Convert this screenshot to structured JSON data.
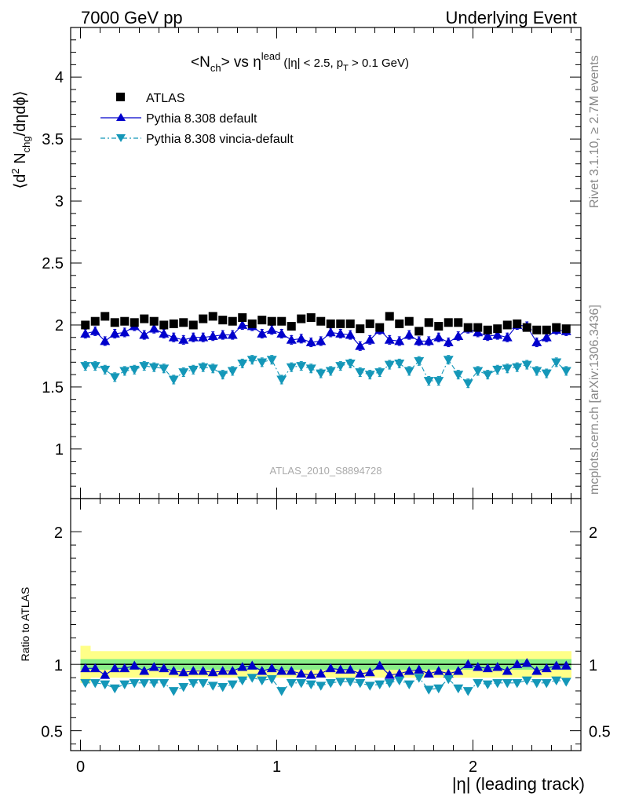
{
  "header": {
    "left": "7000 GeV pp",
    "right": "Underlying Event"
  },
  "side_labels": {
    "rivet": "Rivet 3.1.10, ≥ 2.7M events",
    "mcplots": "mcplots.cern.ch [arXiv:1306.3436]"
  },
  "chart_data": {
    "type": "scatter",
    "title": "<N_ch> vs η^lead (|η| < 2.5, p_T > 0.1 GeV)",
    "title_parts": {
      "a": "<N",
      "a_sub": "ch",
      "b": "> vs η",
      "b_sup": "lead",
      "c": "(|η| < 2.5, p",
      "c_sub": "T",
      "d": " > 0.1 GeV)"
    },
    "watermark": "ATLAS_2010_S8894728",
    "xlabel": "|η| (leading track)",
    "ylabel": "⟨d² N_chg/dηdϕ⟩",
    "ylabel_parts": {
      "a": "⟨d",
      "sup": "2",
      "b": " N",
      "sub": "chg",
      "c": "/dηdϕ⟩"
    },
    "ratio_ylabel": "Ratio to ATLAS",
    "xlim": [
      -0.05,
      2.55
    ],
    "ylim": [
      0.6,
      4.4
    ],
    "ratio_ylim": [
      0.35,
      2.25
    ],
    "x_ticks": [
      0,
      1,
      2
    ],
    "x_tick_labels": [
      "0",
      "1",
      "2"
    ],
    "y_ticks": [
      1,
      1.5,
      2,
      2.5,
      3,
      3.5,
      4
    ],
    "y_tick_labels": [
      "1",
      "1.5",
      "2",
      "2.5",
      "3",
      "3.5",
      "4"
    ],
    "ratio_y_ticks": [
      0.5,
      1,
      2
    ],
    "ratio_y_tick_labels": [
      "0.5",
      "1",
      "2"
    ],
    "legend_position": "top-left",
    "x": [
      0.025,
      0.075,
      0.125,
      0.175,
      0.225,
      0.275,
      0.325,
      0.375,
      0.425,
      0.475,
      0.525,
      0.575,
      0.625,
      0.675,
      0.725,
      0.775,
      0.825,
      0.875,
      0.925,
      0.975,
      1.025,
      1.075,
      1.125,
      1.175,
      1.225,
      1.275,
      1.325,
      1.375,
      1.425,
      1.475,
      1.525,
      1.575,
      1.625,
      1.675,
      1.725,
      1.775,
      1.825,
      1.875,
      1.925,
      1.975,
      2.025,
      2.075,
      2.125,
      2.175,
      2.225,
      2.275,
      2.325,
      2.375,
      2.425,
      2.475
    ],
    "series": [
      {
        "name": "ATLAS",
        "color": "#000000",
        "marker": "square",
        "values": [
          2.0,
          2.03,
          2.07,
          2.02,
          2.03,
          2.02,
          2.05,
          2.03,
          2.0,
          2.01,
          2.02,
          2.0,
          2.05,
          2.07,
          2.04,
          2.03,
          2.06,
          2.01,
          2.04,
          2.03,
          2.03,
          1.99,
          2.05,
          2.06,
          2.03,
          2.01,
          2.01,
          2.01,
          1.97,
          2.01,
          1.98,
          2.07,
          2.01,
          2.03,
          1.95,
          2.02,
          1.99,
          2.02,
          2.02,
          1.98,
          1.98,
          1.96,
          1.97,
          2.0,
          2.01,
          1.98,
          1.96,
          1.96,
          1.98,
          1.97
        ],
        "band_inner_halfwidth": 0.04,
        "band_outer_halfwidth": 0.1
      },
      {
        "name": "Pythia 8.308 default",
        "color": "#0000cc",
        "marker": "triangle-up",
        "line": "solid",
        "values": [
          1.93,
          1.95,
          1.87,
          1.93,
          1.94,
          1.99,
          1.92,
          1.97,
          1.93,
          1.9,
          1.88,
          1.9,
          1.9,
          1.91,
          1.92,
          1.92,
          2.0,
          1.99,
          1.93,
          1.96,
          1.93,
          1.88,
          1.89,
          1.86,
          1.87,
          1.94,
          1.93,
          1.92,
          1.83,
          1.88,
          1.96,
          1.88,
          1.87,
          1.92,
          1.87,
          1.87,
          1.9,
          1.86,
          1.91,
          1.97,
          1.94,
          1.91,
          1.92,
          1.9,
          2.0,
          1.99,
          1.86,
          1.9,
          1.96,
          1.95
        ],
        "ratio": [
          0.97,
          0.97,
          0.92,
          0.97,
          0.97,
          0.99,
          0.95,
          0.98,
          0.97,
          0.95,
          0.94,
          0.95,
          0.95,
          0.94,
          0.95,
          0.95,
          0.98,
          0.99,
          0.95,
          0.97,
          0.95,
          0.95,
          0.93,
          0.92,
          0.93,
          0.97,
          0.96,
          0.96,
          0.93,
          0.94,
          0.99,
          0.92,
          0.93,
          0.95,
          0.96,
          0.93,
          0.95,
          0.93,
          0.95,
          1.0,
          0.98,
          0.97,
          0.98,
          0.95,
          1.0,
          1.01,
          0.95,
          0.97,
          0.99,
          0.99
        ]
      },
      {
        "name": "Pythia 8.308 vincia-default",
        "color": "#1497b8",
        "marker": "triangle-down",
        "line": "dash-dot",
        "values": [
          1.67,
          1.67,
          1.64,
          1.58,
          1.63,
          1.64,
          1.67,
          1.66,
          1.65,
          1.56,
          1.62,
          1.64,
          1.66,
          1.65,
          1.6,
          1.63,
          1.69,
          1.72,
          1.7,
          1.72,
          1.56,
          1.66,
          1.67,
          1.65,
          1.61,
          1.63,
          1.67,
          1.69,
          1.62,
          1.6,
          1.62,
          1.68,
          1.69,
          1.63,
          1.71,
          1.55,
          1.55,
          1.72,
          1.6,
          1.53,
          1.63,
          1.6,
          1.64,
          1.65,
          1.66,
          1.68,
          1.63,
          1.61,
          1.7,
          1.63
        ],
        "ratio": [
          0.86,
          0.86,
          0.85,
          0.82,
          0.85,
          0.86,
          0.86,
          0.86,
          0.86,
          0.8,
          0.83,
          0.86,
          0.86,
          0.84,
          0.83,
          0.85,
          0.88,
          0.9,
          0.88,
          0.89,
          0.8,
          0.86,
          0.86,
          0.85,
          0.84,
          0.86,
          0.87,
          0.87,
          0.86,
          0.84,
          0.85,
          0.86,
          0.88,
          0.85,
          0.9,
          0.81,
          0.82,
          0.89,
          0.82,
          0.8,
          0.86,
          0.85,
          0.86,
          0.86,
          0.86,
          0.88,
          0.86,
          0.86,
          0.88,
          0.87
        ]
      }
    ]
  }
}
